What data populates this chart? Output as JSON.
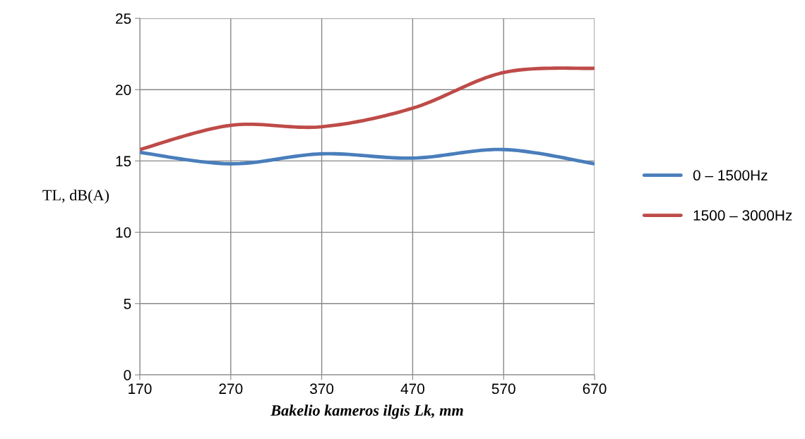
{
  "chart_data": {
    "type": "line",
    "xlabel": "Bakelio kameros ilgis Lk, mm",
    "ylabel": "TL, dB(A)",
    "x": [
      170,
      270,
      370,
      470,
      570,
      670
    ],
    "series": [
      {
        "name": "0 – 1500Hz",
        "color": "#4a7ebb",
        "values": [
          15.6,
          14.8,
          15.5,
          15.2,
          15.8,
          14.8
        ]
      },
      {
        "name": "1500 – 3000Hz",
        "color": "#be4b48",
        "values": [
          15.8,
          17.5,
          17.4,
          18.7,
          21.2,
          21.5
        ]
      }
    ],
    "xlim": [
      170,
      670
    ],
    "xticks": [
      170,
      270,
      370,
      470,
      570,
      670
    ],
    "ylim": [
      0,
      25
    ],
    "yticks": [
      0,
      5,
      10,
      15,
      20,
      25
    ],
    "grid": true,
    "legend": "right",
    "marker": "none",
    "line_style": "solid"
  }
}
